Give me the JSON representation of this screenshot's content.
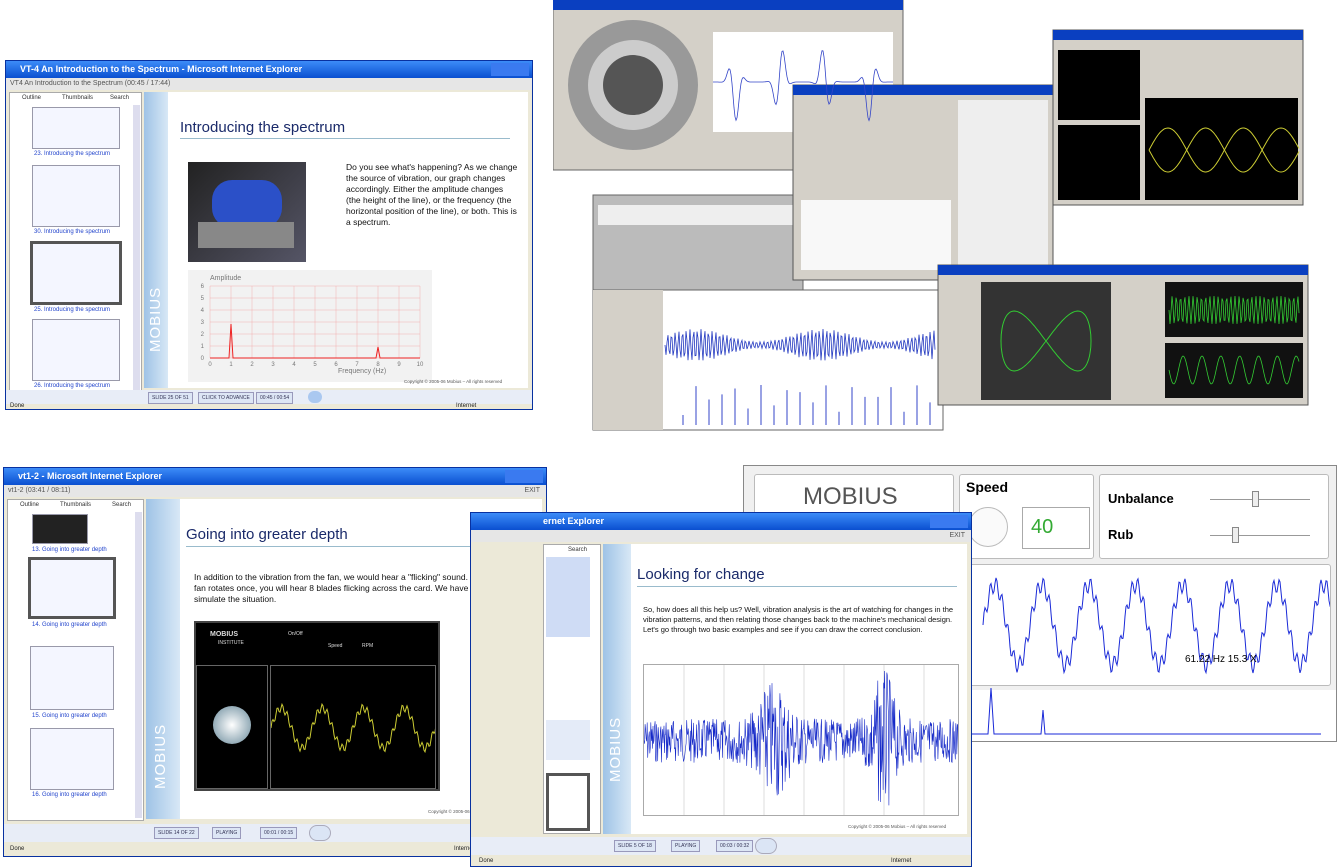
{
  "spectrum_window": {
    "title": "VT-4 An Introduction to the Spectrum - Microsoft Internet Explorer",
    "subtitle": "VT4 An Introduction to the Spectrum   (00:45 / 17:44)",
    "tabs": [
      "Outline",
      "Thumbnails",
      "Search"
    ],
    "thumbnails": [
      "23. Introducing the spectrum",
      "30. Introducing the spectrum",
      "25. Introducing the spectrum",
      "26. Introducing the spectrum"
    ],
    "slide_title": "Introducing the spectrum",
    "text": "Do you see what's happening?  As we change the source of vibration, our graph changes accordingly. Either the amplitude changes (the height of the line), or the frequency (the horizontal position of the line), or both.  This is a spectrum.",
    "logo": "MOBIUS",
    "chart": {
      "ylabel": "Amplitude",
      "yticks": [
        "0",
        "1",
        "2",
        "3",
        "4",
        "5",
        "6"
      ],
      "xticks": [
        "0",
        "1",
        "2",
        "3",
        "4",
        "5",
        "6",
        "7",
        "8",
        "9",
        "10"
      ],
      "xlabel": "Frequency (Hz)"
    },
    "footer": "Copyright © 2005-06 Mobius – All rights reserved",
    "controls": [
      "SLIDE 25 OF 51",
      "CLICK TO ADVANCE",
      "00:45 / 00:54"
    ],
    "status": [
      "Done",
      "Internet"
    ]
  },
  "depth_window": {
    "title": "vt1-2 - Microsoft Internet Explorer",
    "subtitle": "vt1-2   (03:41 / 08:11)",
    "exit": "EXIT",
    "tabs": [
      "Outline",
      "Thumbnails",
      "Search"
    ],
    "thumbnails": [
      "13. Going into greater depth",
      "14. Going into greater depth",
      "15. Going into greater depth",
      "16. Going into greater depth"
    ],
    "slide_title": "Going into greater depth",
    "text": "In addition to the vibration from the fan, we would hear a \"flicking\" sound. Every time the fan rotates once, you will hear 8 blades flicking across the card.  We have attempted to simulate the situation.",
    "inner": [
      "MOBIUS",
      "INSTITUTE",
      "On/Off",
      "Speed",
      "RPM"
    ],
    "logo": "MOBIUS",
    "footer": "Copyright © 2005-06 Mobius – All rights reserved",
    "controls": [
      "SLIDE 14 OF 22",
      "PLAYING",
      "00:01 / 00:15"
    ],
    "status": [
      "Done",
      "Internet"
    ]
  },
  "change_window": {
    "title": "ernet Explorer",
    "exit": "EXIT",
    "tab": "Search",
    "slide_title": "Looking for change",
    "text": "So, how does all this help us?  Well, vibration analysis is the art of watching for changes in the vibration patterns, and then relating those changes back to the machine's mechanical design.  Let's go through two basic examples and see if you can draw the correct conclusion.",
    "logo": "MOBIUS",
    "footer": "Copyright © 2005-06 Mobius – All rights reserved",
    "controls": [
      "SLIDE 5 OF 18",
      "PLAYING",
      "00:03 / 00:32"
    ],
    "status": [
      "Done",
      "Internet"
    ]
  },
  "app": {
    "logo": "MOBIUS",
    "speed_label": "Speed",
    "speed": "40",
    "unbalance": "Unbalance",
    "rub": "Rub",
    "readout": "61.22 Hz  15.3 X"
  }
}
